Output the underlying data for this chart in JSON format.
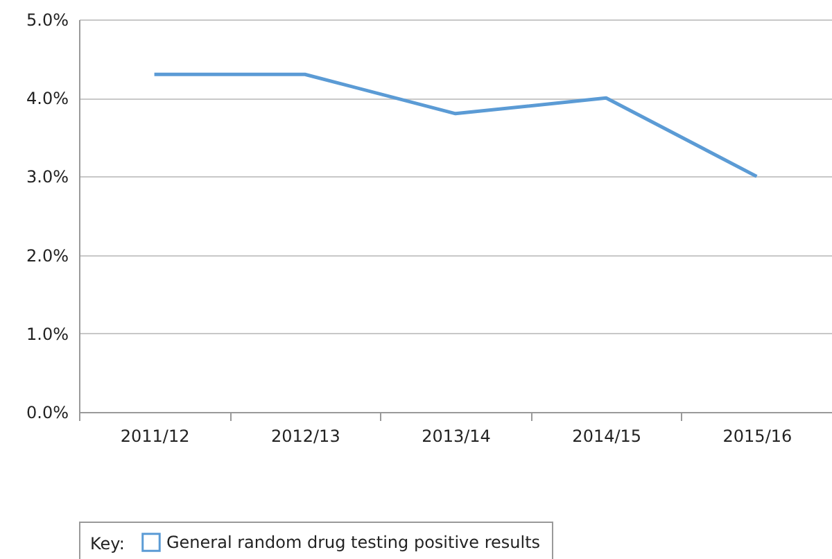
{
  "chart_data": {
    "type": "line",
    "categories": [
      "2011/12",
      "2012/13",
      "2013/14",
      "2014/15",
      "2015/16"
    ],
    "series": [
      {
        "name": "General random drug testing positive results",
        "color": "#5b9bd5",
        "values": [
          4.3,
          4.3,
          3.8,
          4.0,
          3.0
        ]
      }
    ],
    "ylim": [
      0,
      5
    ],
    "yticks": [
      {
        "value": 0,
        "label": "0.0%"
      },
      {
        "value": 1,
        "label": "1.0%"
      },
      {
        "value": 2,
        "label": "2.0%"
      },
      {
        "value": 3,
        "label": "3.0%"
      },
      {
        "value": 4,
        "label": "4.0%"
      },
      {
        "value": 5,
        "label": "5.0%"
      }
    ],
    "grid": "y",
    "legend": "bottom",
    "legend_title": "Key:",
    "marker": "none",
    "line_style": "solid"
  }
}
